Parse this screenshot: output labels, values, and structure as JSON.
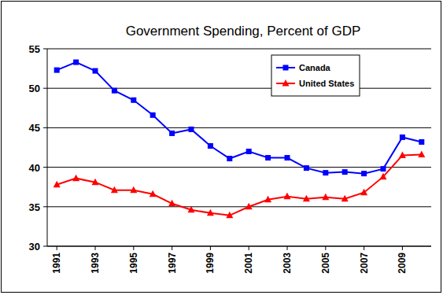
{
  "chart_data": {
    "type": "line",
    "title": "Government Spending, Percent of GDP",
    "x": [
      1991,
      1992,
      1993,
      1994,
      1995,
      1996,
      1997,
      1998,
      1999,
      2000,
      2001,
      2002,
      2003,
      2004,
      2005,
      2006,
      2007,
      2008,
      2009,
      2010
    ],
    "xlim": [
      1990.5,
      2010.5
    ],
    "xticks": [
      1991,
      1993,
      1995,
      1997,
      1999,
      2001,
      2003,
      2005,
      2007,
      2009
    ],
    "ylim": [
      30,
      55
    ],
    "yticks": [
      30,
      35,
      40,
      45,
      50,
      55
    ],
    "grid": true,
    "legend": "upper right",
    "series": [
      {
        "name": "Canada",
        "color": "#0000ff",
        "marker": "square",
        "line_style": "solid",
        "values": [
          52.3,
          53.3,
          52.2,
          49.7,
          48.5,
          46.6,
          44.3,
          44.8,
          42.7,
          41.1,
          42.0,
          41.2,
          41.2,
          39.9,
          39.3,
          39.4,
          39.2,
          39.8,
          43.8,
          43.2
        ]
      },
      {
        "name": "United States",
        "color": "#ff0000",
        "marker": "triangle",
        "line_style": "solid",
        "values": [
          37.8,
          38.6,
          38.1,
          37.1,
          37.1,
          36.6,
          35.4,
          34.6,
          34.2,
          33.9,
          35.0,
          35.9,
          36.3,
          36.0,
          36.2,
          36.0,
          36.8,
          38.8,
          41.5,
          41.6
        ]
      }
    ]
  }
}
